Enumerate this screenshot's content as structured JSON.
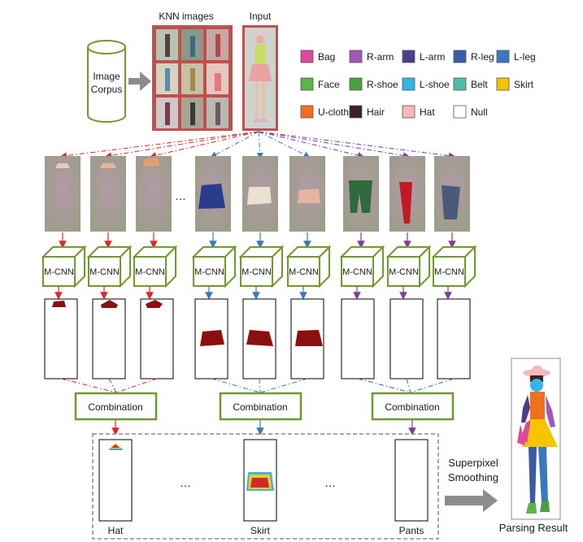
{
  "header": {
    "knn_label": "KNN images",
    "input_label": "Input"
  },
  "corpus": {
    "line1": "Image",
    "line2": "Corpus"
  },
  "legend": [
    {
      "label": "Bag",
      "color": "#e0489b"
    },
    {
      "label": "R-arm",
      "color": "#a057b7"
    },
    {
      "label": "L-arm",
      "color": "#4f3d8c"
    },
    {
      "label": "R-leg",
      "color": "#3a5ba6"
    },
    {
      "label": "L-leg",
      "color": "#3b78bd"
    },
    {
      "label": "Face",
      "color": "#5fb448"
    },
    {
      "label": "R-shoe",
      "color": "#4aa040"
    },
    {
      "label": "L-shoe",
      "color": "#33b5e5"
    },
    {
      "label": "Belt",
      "color": "#4fbfa5"
    },
    {
      "label": "Skirt",
      "color": "#f7c400"
    },
    {
      "label": "U-cloth",
      "color": "#f07020"
    },
    {
      "label": "Hair",
      "color": "#3b2220"
    },
    {
      "label": "Hat",
      "color": "#f6b9bb"
    },
    {
      "label": "Null",
      "color": "#ffffff"
    }
  ],
  "ellipsis": "…",
  "mcnn_label": "M-CNN",
  "combination_label": "Combination",
  "results": {
    "hat": "Hat",
    "skirt": "Skirt",
    "pants": "Pants"
  },
  "smoothing": {
    "line1": "Superpixel",
    "line2": "Smoothing"
  },
  "parsing_result": "Parsing Result",
  "colors": {
    "red": "#e0262a",
    "blue": "#3b78bd",
    "purple": "#7a3f98",
    "green_border": "#6f9a2c",
    "frame": "#c0504d",
    "mask": "#8b0f0f",
    "arrow_gray": "#8c8c8c"
  }
}
